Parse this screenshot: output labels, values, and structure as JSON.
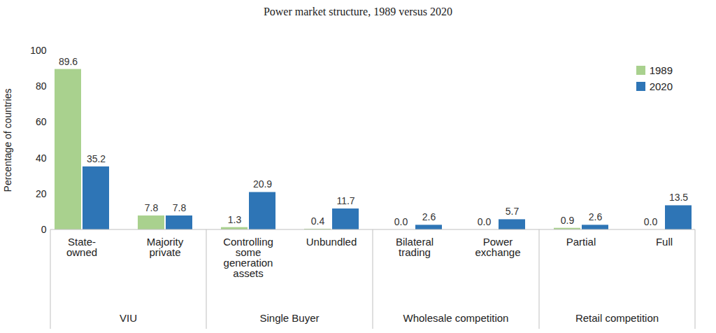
{
  "chart_data": {
    "type": "bar",
    "title": "Power market structure, 1989 versus 2020",
    "y_label": "Percentage of countries",
    "categories": [
      "State-owned",
      "Majority private",
      "Controlling some generation assets",
      "Unbundled",
      "Bilateral trading",
      "Power exchange",
      "Partial",
      "Full"
    ],
    "groups": [
      {
        "name": "VIU",
        "categories": [
          "State-owned",
          "Majority private"
        ]
      },
      {
        "name": "Single Buyer",
        "categories": [
          "Controlling some generation assets",
          "Unbundled"
        ]
      },
      {
        "name": "Wholesale competition",
        "categories": [
          "Bilateral trading",
          "Power exchange"
        ]
      },
      {
        "name": "Retail competition",
        "categories": [
          "Partial",
          "Full"
        ]
      }
    ],
    "series": [
      {
        "name": "1989",
        "color": "#a9d18e",
        "values": [
          89.6,
          7.8,
          1.3,
          0.4,
          0.0,
          0.0,
          0.9,
          0.0
        ],
        "value_labels": [
          "89.6",
          "7.8",
          "1.3",
          "0.4",
          "0.0",
          "0.0",
          "0.9",
          "0.0"
        ]
      },
      {
        "name": "2020",
        "color": "#2e75b6",
        "values": [
          35.2,
          7.8,
          20.9,
          11.7,
          2.6,
          5.7,
          2.6,
          13.5
        ],
        "value_labels": [
          "35.2",
          "7.8",
          "20.9",
          "11.7",
          "2.6",
          "5.7",
          "2.6",
          "13.5"
        ]
      }
    ],
    "ylim": [
      0,
      100
    ],
    "yticks": [
      0,
      20,
      40,
      60,
      80,
      100
    ],
    "grid": false,
    "legend": "top-right",
    "data_labels": true
  }
}
